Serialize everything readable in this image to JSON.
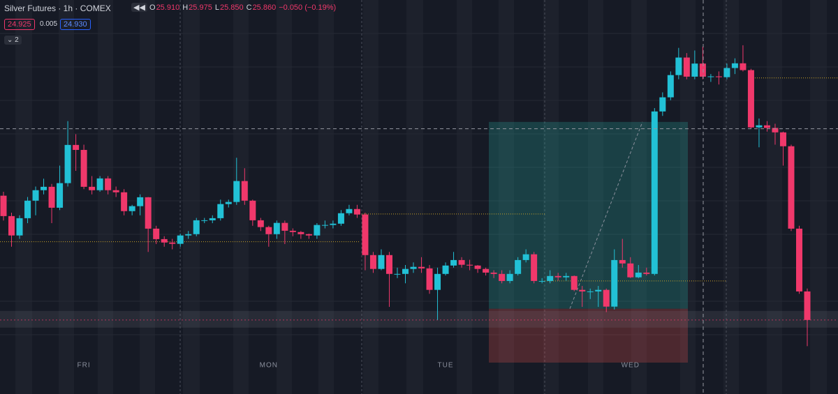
{
  "header": {
    "title": "Silver Futures · 1h · COMEX",
    "ohlc": [
      {
        "label": "O",
        "value": "25.910"
      },
      {
        "label": "H",
        "value": "25.975"
      },
      {
        "label": "L",
        "value": "25.850"
      },
      {
        "label": "C",
        "value": "25.860"
      }
    ],
    "change": "−0.050 (−0.19%)",
    "bid": "24.925",
    "spread": "0.005",
    "ask": "24.930",
    "indicators": "2"
  },
  "chart_data": {
    "type": "candlestick",
    "ylim": [
      24.647,
      26.153
    ],
    "up_color": "#22c1d6",
    "down_color": "#f0386b",
    "categories": [
      null,
      null,
      null,
      null,
      null,
      null,
      null,
      null,
      null,
      null,
      "FRI",
      null,
      null,
      null,
      null,
      null,
      null,
      null,
      null,
      null,
      null,
      null,
      null,
      null,
      null,
      null,
      null,
      null,
      null,
      null,
      null,
      null,
      null,
      "MON",
      null,
      null,
      null,
      null,
      null,
      null,
      null,
      null,
      null,
      null,
      null,
      null,
      null,
      null,
      null,
      null,
      null,
      null,
      null,
      null,
      null,
      "TUE",
      null,
      null,
      null,
      null,
      null,
      null,
      null,
      null,
      null,
      null,
      null,
      null,
      null,
      null,
      null,
      null,
      null,
      null,
      null,
      null,
      null,
      null,
      "WED",
      null,
      null,
      null,
      null,
      null,
      null,
      null,
      null,
      null,
      null,
      null,
      null,
      null,
      null,
      null,
      null,
      null,
      null,
      null,
      null,
      null,
      null
    ],
    "open": [
      25.405,
      25.327,
      25.253,
      25.319,
      25.386,
      25.426,
      25.439,
      25.359,
      25.453,
      25.599,
      25.58,
      25.439,
      25.426,
      25.471,
      25.426,
      25.418,
      25.346,
      25.365,
      25.399,
      25.279,
      25.239,
      25.226,
      25.221,
      25.253,
      25.258,
      25.311,
      25.311,
      25.319,
      25.373,
      25.381,
      25.461,
      25.386,
      25.311,
      25.285,
      25.258,
      25.301,
      25.271,
      25.266,
      25.258,
      25.253,
      25.293,
      25.293,
      25.298,
      25.338,
      25.354,
      25.333,
      25.178,
      25.125,
      25.178,
      25.106,
      25.106,
      25.125,
      25.133,
      25.127,
      25.045,
      25.106,
      25.138,
      25.159,
      25.141,
      25.138,
      25.125,
      25.111,
      25.106,
      25.079,
      25.106,
      25.159,
      25.181,
      25.079,
      25.079,
      25.098,
      25.093,
      25.098,
      25.045,
      25.039,
      25.039,
      25.045,
      24.981,
      25.159,
      25.146,
      25.093,
      25.111,
      25.106,
      25.727,
      25.781,
      25.866,
      25.933,
      25.86,
      25.91,
      25.86,
      25.861,
      25.858,
      25.893,
      25.911,
      25.885,
      25.666,
      25.674,
      25.664,
      25.647,
      25.594,
      25.279,
      25.039
    ],
    "high": [
      25.42,
      25.34,
      25.33,
      25.4,
      25.44,
      25.47,
      25.45,
      25.52,
      25.69,
      25.64,
      25.6,
      25.48,
      25.48,
      25.48,
      25.44,
      25.43,
      25.37,
      25.41,
      25.4,
      25.29,
      25.25,
      25.24,
      25.26,
      25.27,
      25.32,
      25.32,
      25.33,
      25.39,
      25.39,
      25.55,
      25.51,
      25.39,
      25.32,
      25.29,
      25.31,
      25.31,
      25.28,
      25.27,
      25.26,
      25.3,
      25.31,
      25.31,
      25.35,
      25.37,
      25.37,
      25.34,
      25.19,
      25.2,
      25.19,
      25.13,
      25.14,
      25.15,
      25.17,
      25.14,
      25.13,
      25.15,
      25.19,
      25.17,
      25.16,
      25.14,
      25.13,
      25.12,
      25.12,
      25.12,
      25.17,
      25.2,
      25.19,
      25.09,
      25.12,
      25.11,
      25.11,
      25.1,
      25.06,
      25.05,
      25.06,
      25.05,
      25.2,
      25.24,
      25.17,
      25.14,
      25.13,
      25.74,
      25.8,
      25.88,
      25.97,
      25.95,
      25.96,
      25.975,
      25.87,
      25.88,
      25.91,
      25.93,
      25.98,
      25.89,
      25.7,
      25.69,
      25.68,
      25.65,
      25.6,
      25.29,
      25.05
    ],
    "low": [
      25.31,
      25.21,
      25.24,
      25.3,
      25.33,
      25.41,
      25.3,
      25.35,
      25.44,
      25.5,
      25.43,
      25.41,
      25.42,
      25.41,
      25.4,
      25.33,
      25.33,
      25.33,
      25.19,
      25.22,
      25.21,
      25.2,
      25.21,
      25.24,
      25.25,
      25.3,
      25.3,
      25.31,
      25.36,
      25.37,
      25.37,
      25.29,
      25.27,
      25.21,
      25.24,
      25.22,
      25.25,
      25.24,
      25.24,
      25.24,
      25.28,
      25.28,
      25.29,
      25.33,
      25.32,
      25.12,
      25.11,
      25.12,
      24.98,
      25.09,
      25.07,
      25.11,
      25.11,
      25.03,
      24.93,
      25.1,
      25.13,
      25.13,
      25.12,
      25.11,
      25.1,
      25.09,
      25.07,
      25.07,
      25.1,
      25.15,
      25.07,
      25.07,
      25.07,
      25.08,
      25.08,
      25.04,
      24.98,
      25.01,
      24.98,
      24.96,
      24.97,
      25.13,
      25.09,
      25.09,
      25.1,
      25.1,
      25.71,
      25.77,
      25.85,
      25.85,
      25.85,
      25.85,
      25.84,
      25.83,
      25.85,
      25.87,
      25.88,
      25.66,
      25.59,
      25.65,
      25.6,
      25.52,
      25.27,
      25.03,
      24.83
    ],
    "close": [
      25.327,
      25.253,
      25.319,
      25.386,
      25.426,
      25.439,
      25.359,
      25.453,
      25.599,
      25.58,
      25.439,
      25.426,
      25.471,
      25.426,
      25.418,
      25.346,
      25.365,
      25.399,
      25.279,
      25.239,
      25.226,
      25.221,
      25.253,
      25.258,
      25.311,
      25.311,
      25.319,
      25.373,
      25.381,
      25.461,
      25.386,
      25.311,
      25.285,
      25.258,
      25.301,
      25.271,
      25.266,
      25.258,
      25.253,
      25.293,
      25.293,
      25.298,
      25.338,
      25.354,
      25.333,
      25.178,
      25.125,
      25.178,
      25.106,
      25.106,
      25.125,
      25.133,
      25.127,
      25.045,
      25.106,
      25.138,
      25.159,
      25.141,
      25.138,
      25.125,
      25.111,
      25.106,
      25.079,
      25.106,
      25.159,
      25.181,
      25.079,
      25.079,
      25.098,
      25.093,
      25.098,
      25.045,
      25.039,
      25.039,
      25.045,
      24.981,
      25.159,
      25.146,
      25.093,
      25.111,
      25.106,
      25.727,
      25.781,
      25.866,
      25.933,
      25.86,
      25.91,
      25.86,
      25.861,
      25.858,
      25.893,
      25.911,
      25.885,
      25.666,
      25.674,
      25.664,
      25.647,
      25.594,
      25.279,
      25.039,
      24.93
    ],
    "position": {
      "entry": 24.973,
      "target": 25.687,
      "stop": 24.767
    },
    "levels": [
      25.229,
      25.335,
      25.079,
      25.855
    ],
    "crosshair": 25.661,
    "last_price": 24.93
  }
}
